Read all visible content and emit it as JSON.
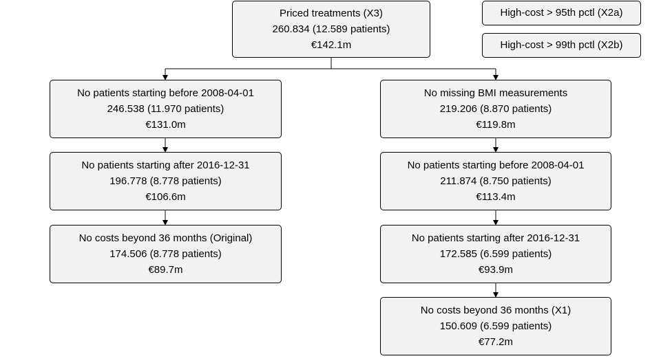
{
  "root": {
    "title": "Priced treatments (X3)",
    "count": "260.834 (12.589 patients)",
    "cost": "€142.1m"
  },
  "side_boxes": [
    {
      "label": "High-cost > 95th pctl (X2a)"
    },
    {
      "label": "High-cost > 99th pctl (X2b)"
    }
  ],
  "left_branch": [
    {
      "title": "No patients starting before 2008-04-01",
      "count": "246.538 (11.970 patients)",
      "cost": "€131.0m"
    },
    {
      "title": "No patients starting after 2016-12-31",
      "count": "196.778 (8.778 patients)",
      "cost": "€106.6m"
    },
    {
      "title": "No costs beyond 36 months (Original)",
      "count": "174.506 (8.778 patients)",
      "cost": "€89.7m"
    }
  ],
  "right_branch": [
    {
      "title": "No missing BMI measurements",
      "count": "219.206 (8.870 patients)",
      "cost": "€119.8m"
    },
    {
      "title": "No patients starting before 2008-04-01",
      "count": "211.874 (8.750 patients)",
      "cost": "€113.4m"
    },
    {
      "title": "No patients starting after 2016-12-31",
      "count": "172.585 (6.599 patients)",
      "cost": "€93.9m"
    },
    {
      "title": "No costs beyond 36 months (X1)",
      "count": "150.609 (6.599 patients)",
      "cost": "€77.2m"
    }
  ]
}
